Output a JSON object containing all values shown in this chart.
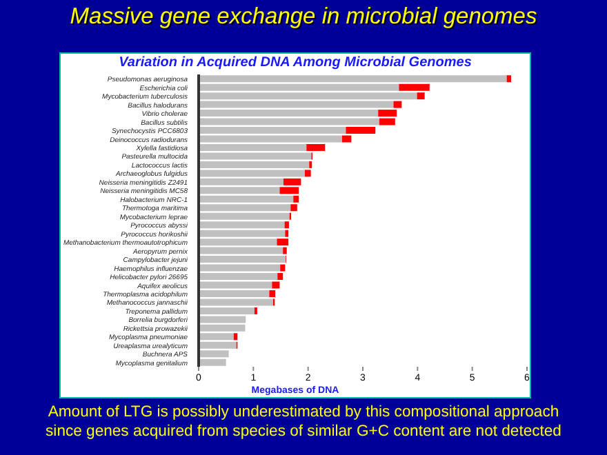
{
  "chart_data": {
    "type": "bar",
    "orientation": "horizontal",
    "stacked": true,
    "title": "Massive gene exchange in microbial genomes",
    "subtitle": "Variation in Acquired DNA Among Microbial Genomes",
    "xlabel": "Megabases of DNA",
    "annotations": [
      "Amount of LTG is possibly underestimated by this compositional approach since genes acquired from species of similar G+C content are not detected"
    ],
    "categories": [
      "Pseudomonas aeruginosa",
      "Escherichia coli",
      "Mycobacterium tuberculosis",
      "Bacillus halodurans",
      "Vibrio cholerae",
      "Bacillus subtilis",
      "Synechocystis PCC6803",
      "Deinococcus radiodurans",
      "Xylella fastidiosa",
      "Pasteurella multocida",
      "Lactococcus lactis",
      "Archaeoglobus fulgidus",
      "Neisseria meningitidis Z2491",
      "Neisseria meningitidis MC58",
      "Halobacterium NRC-1",
      "Thermotoga maritima",
      "Mycobacterium leprae",
      "Pyrococcus abyssi",
      "Pyrococcus horikoshii",
      "Methanobacterium thermoautotrophicum",
      "Aeropyrum pernix",
      "Campylobacter jejuni",
      "Haemophilus influenzae",
      "Helicobacter pylori 26695",
      "Aquifex aeolicus",
      "Thermoplasma acidophilum",
      "Methanococcus jannaschii",
      "Treponema pallidum",
      "Borrelia burgdorferi",
      "Rickettsia prowazekii",
      "Mycoplasma pneumoniae",
      "Ureaplasma urealyticum",
      "Buchnera APS",
      "Mycoplasma genitalium"
    ],
    "series": [
      {
        "color": "#c0c0c0",
        "values": [
          5.63,
          3.66,
          3.99,
          3.56,
          3.28,
          3.3,
          2.69,
          2.62,
          1.97,
          2.06,
          2.02,
          1.94,
          1.55,
          1.48,
          1.73,
          1.68,
          1.66,
          1.57,
          1.58,
          1.43,
          1.54,
          1.59,
          1.49,
          1.44,
          1.34,
          1.29,
          1.36,
          1.02,
          0.86,
          0.85,
          0.64,
          0.69,
          0.55,
          0.5
        ]
      },
      {
        "color": "#ff0000",
        "values": [
          0.08,
          0.56,
          0.14,
          0.15,
          0.34,
          0.29,
          0.54,
          0.17,
          0.34,
          0.02,
          0.05,
          0.11,
          0.32,
          0.35,
          0.1,
          0.12,
          0.03,
          0.08,
          0.06,
          0.21,
          0.07,
          0.01,
          0.09,
          0.1,
          0.14,
          0.11,
          0.03,
          0.05,
          0,
          0,
          0.07,
          0.02,
          0,
          0
        ]
      }
    ],
    "xlim": [
      0,
      6
    ],
    "xticks": [
      0,
      1,
      2,
      3,
      4,
      5,
      6
    ],
    "grid": false,
    "legend": false
  }
}
